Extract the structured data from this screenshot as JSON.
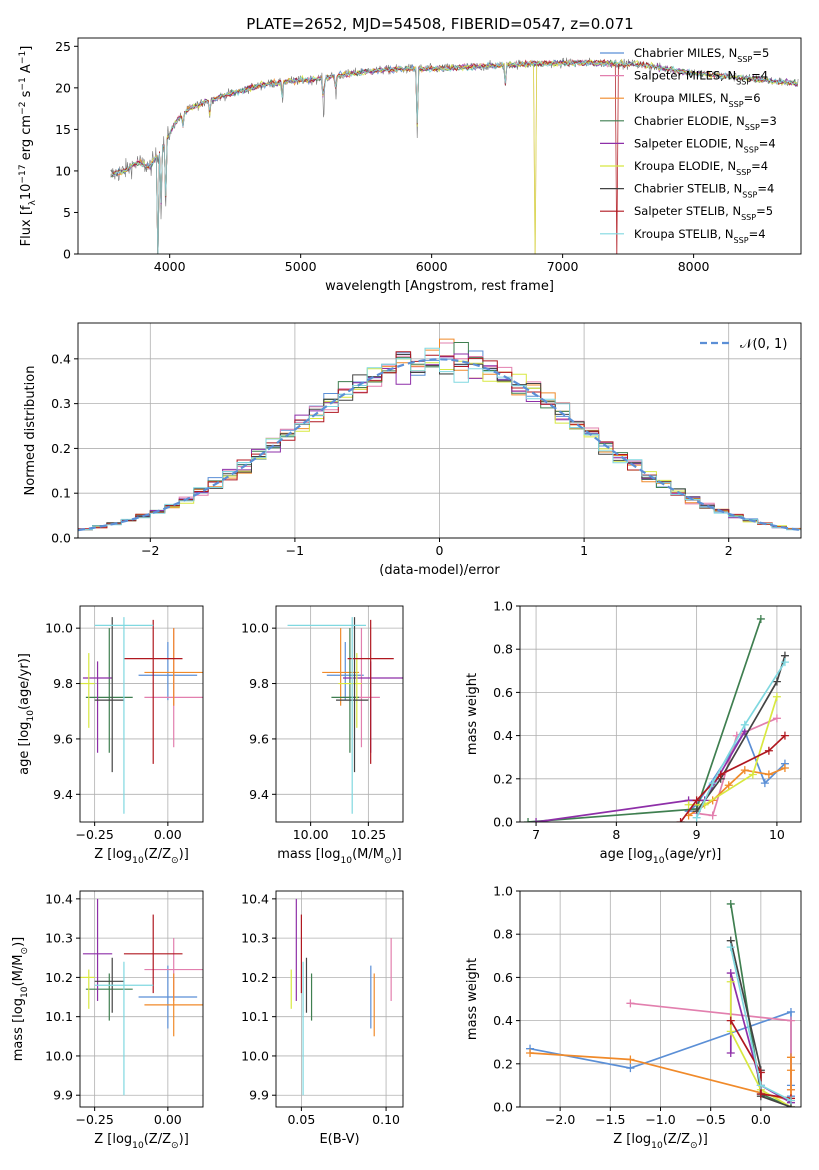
{
  "figure": {
    "title": "PLATE=2652, MJD=54508, FIBERID=0547, z=0.071"
  },
  "colors": {
    "chabrier_miles": "#5b8fd6",
    "salpeter_miles": "#e27fae",
    "kroupa_miles": "#f08a2a",
    "chabrier_elodie": "#3f7f50",
    "salpeter_elodie": "#8e2fa8",
    "kroupa_elodie": "#d8e840",
    "chabrier_stelib": "#444444",
    "salpeter_stelib": "#b01820",
    "kroupa_stelib": "#80d8e0",
    "normal_curve": "#5b8fd6",
    "grid": "#b0b0b0"
  },
  "chart_data": [
    {
      "id": "spectrum",
      "type": "line",
      "xlabel": "wavelength [Angstrom, rest frame]",
      "ylabel": "Flux [f_λ10^-17 erg cm^-2 s^-1 A^-1]",
      "xlim": [
        3300,
        8820
      ],
      "ylim": [
        0,
        26
      ],
      "xticks": [
        4000,
        5000,
        6000,
        7000,
        8000
      ],
      "yticks": [
        0,
        5,
        10,
        15,
        20,
        25
      ],
      "grid": false,
      "legend_position": "top-right",
      "legend": [
        {
          "label": "Chabrier MILES, N",
          "sub": "SSP",
          "suffix": "=5",
          "color_key": "chabrier_miles"
        },
        {
          "label": "Salpeter MILES, N",
          "sub": "SSP",
          "suffix": "=4",
          "color_key": "salpeter_miles"
        },
        {
          "label": "Kroupa MILES, N",
          "sub": "SSP",
          "suffix": "=6",
          "color_key": "kroupa_miles"
        },
        {
          "label": "Chabrier ELODIE, N",
          "sub": "SSP",
          "suffix": "=3",
          "color_key": "chabrier_elodie"
        },
        {
          "label": "Salpeter ELODIE, N",
          "sub": "SSP",
          "suffix": "=4",
          "color_key": "salpeter_elodie"
        },
        {
          "label": "Kroupa ELODIE, N",
          "sub": "SSP",
          "suffix": "=4",
          "color_key": "kroupa_elodie"
        },
        {
          "label": "Chabrier STELIB, N",
          "sub": "SSP",
          "suffix": "=4",
          "color_key": "chabrier_stelib"
        },
        {
          "label": "Salpeter STELIB, N",
          "sub": "SSP",
          "suffix": "=5",
          "color_key": "salpeter_stelib"
        },
        {
          "label": "Kroupa STELIB, N",
          "sub": "SSP",
          "suffix": "=4",
          "color_key": "kroupa_stelib"
        }
      ],
      "continuum": [
        [
          3550,
          9.5
        ],
        [
          3650,
          10
        ],
        [
          3750,
          11
        ],
        [
          3850,
          10.5
        ],
        [
          3950,
          13
        ],
        [
          4050,
          16
        ],
        [
          4150,
          17.5
        ],
        [
          4300,
          18.5
        ],
        [
          4500,
          19.5
        ],
        [
          4700,
          20.3
        ],
        [
          4900,
          20.8
        ],
        [
          5100,
          21
        ],
        [
          5300,
          21.5
        ],
        [
          5500,
          22
        ],
        [
          5800,
          22.3
        ],
        [
          6000,
          22.3
        ],
        [
          6300,
          22.5
        ],
        [
          6600,
          22.8
        ],
        [
          7000,
          23
        ],
        [
          7300,
          23
        ],
        [
          7600,
          22.8
        ],
        [
          7900,
          22
        ],
        [
          8200,
          21.5
        ],
        [
          8500,
          21
        ],
        [
          8800,
          20.5
        ]
      ],
      "absorption_lines": [
        [
          3934,
          4.5
        ],
        [
          3969,
          5
        ],
        [
          4101,
          15
        ],
        [
          4305,
          16.5
        ],
        [
          4861,
          18
        ],
        [
          5175,
          16
        ],
        [
          5270,
          19
        ],
        [
          5890,
          14
        ],
        [
          6563,
          20
        ]
      ],
      "model_gaps": [
        3910,
        6790,
        7410
      ]
    },
    {
      "id": "residuals",
      "type": "histogram",
      "xlabel": "(data-model)/error",
      "ylabel": "Normed distribution",
      "xlim": [
        -2.5,
        2.5
      ],
      "ylim": [
        0,
        0.48
      ],
      "xticks": [
        -2,
        -1,
        0,
        1,
        2
      ],
      "yticks": [
        0.0,
        0.1,
        0.2,
        0.3,
        0.4
      ],
      "grid": true,
      "legend_position": "top-right",
      "legend_label": "𝒩(0, 1)",
      "bin_width": 0.1
    },
    {
      "id": "age_vs_Z",
      "type": "errorbar",
      "xlabel": "Z [log10(Z/Z⊙)]",
      "ylabel": "age [log10(age/yr)]",
      "xlim": [
        -0.3,
        0.12
      ],
      "ylim": [
        9.3,
        10.08
      ],
      "xticks": [
        -0.25,
        0.0
      ],
      "yticks": [
        9.4,
        9.6,
        9.8,
        10.0
      ],
      "grid": true,
      "points": [
        {
          "c": "chabrier_miles",
          "x": 0.0,
          "xe": [
            0.1,
            0.1
          ],
          "y": 9.83,
          "ye": [
            0.09,
            0.12
          ]
        },
        {
          "c": "salpeter_miles",
          "x": 0.02,
          "xe": [
            0.1,
            0.1
          ],
          "y": 9.75,
          "ye": [
            0.18,
            0.25
          ]
        },
        {
          "c": "kroupa_miles",
          "x": 0.02,
          "xe": [
            0.1,
            0.1
          ],
          "y": 9.84,
          "ye": [
            0.12,
            0.16
          ]
        },
        {
          "c": "chabrier_elodie",
          "x": -0.2,
          "xe": [
            0.08,
            0.08
          ],
          "y": 9.75,
          "ye": [
            0.2,
            0.25
          ]
        },
        {
          "c": "salpeter_elodie",
          "x": -0.24,
          "xe": [
            0.05,
            0.05
          ],
          "y": 9.82,
          "ye": [
            0.27,
            0.06
          ]
        },
        {
          "c": "kroupa_elodie",
          "x": -0.27,
          "xe": [
            0.03,
            0.02
          ],
          "y": 9.8,
          "ye": [
            0.16,
            0.11
          ]
        },
        {
          "c": "chabrier_stelib",
          "x": -0.19,
          "xe": [
            0.06,
            0.04
          ],
          "y": 9.74,
          "ye": [
            0.26,
            0.3
          ]
        },
        {
          "c": "salpeter_stelib",
          "x": -0.05,
          "xe": [
            0.1,
            0.1
          ],
          "y": 9.89,
          "ye": [
            0.38,
            0.14
          ]
        },
        {
          "c": "kroupa_stelib",
          "x": -0.15,
          "xe": [
            0.1,
            0.1
          ],
          "y": 10.01,
          "ye": [
            0.68,
            0.03
          ]
        }
      ]
    },
    {
      "id": "age_vs_mass",
      "type": "errorbar",
      "xlabel": "mass [log10(M/M⊙)]",
      "ylabel": "",
      "xlim": [
        9.85,
        10.4
      ],
      "ylim": [
        9.3,
        10.08
      ],
      "xticks": [
        10.0,
        10.25
      ],
      "yticks": [
        9.4,
        9.6,
        9.8,
        10.0
      ],
      "grid": true,
      "points": [
        {
          "c": "chabrier_miles",
          "x": 10.15,
          "xe": [
            0.08,
            0.08
          ],
          "y": 9.83,
          "ye": [
            0.09,
            0.12
          ]
        },
        {
          "c": "salpeter_miles",
          "x": 10.22,
          "xe": [
            0.08,
            0.08
          ],
          "y": 9.75,
          "ye": [
            0.18,
            0.25
          ]
        },
        {
          "c": "kroupa_miles",
          "x": 10.13,
          "xe": [
            0.08,
            0.08
          ],
          "y": 9.84,
          "ye": [
            0.12,
            0.16
          ]
        },
        {
          "c": "chabrier_elodie",
          "x": 10.17,
          "xe": [
            0.08,
            0.04
          ],
          "y": 9.75,
          "ye": [
            0.2,
            0.25
          ]
        },
        {
          "c": "salpeter_elodie",
          "x": 10.26,
          "xe": [
            0.12,
            0.14
          ],
          "y": 9.82,
          "ye": [
            0.27,
            0.06
          ]
        },
        {
          "c": "kroupa_elodie",
          "x": 10.2,
          "xe": [
            0.08,
            0.02
          ],
          "y": 9.8,
          "ye": [
            0.16,
            0.11
          ]
        },
        {
          "c": "chabrier_stelib",
          "x": 10.19,
          "xe": [
            0.08,
            0.06
          ],
          "y": 9.74,
          "ye": [
            0.26,
            0.3
          ]
        },
        {
          "c": "salpeter_stelib",
          "x": 10.26,
          "xe": [
            0.1,
            0.1
          ],
          "y": 9.89,
          "ye": [
            0.38,
            0.14
          ]
        },
        {
          "c": "kroupa_stelib",
          "x": 10.18,
          "xe": [
            0.28,
            0.06
          ],
          "y": 10.01,
          "ye": [
            0.68,
            0.03
          ]
        }
      ]
    },
    {
      "id": "weight_vs_age",
      "type": "line",
      "xlabel": "age [log10(age/yr)]",
      "ylabel": "mass weight",
      "xlim": [
        6.8,
        10.3
      ],
      "ylim": [
        0,
        1.0
      ],
      "xticks": [
        7,
        8,
        9,
        10
      ],
      "yticks": [
        0.0,
        0.2,
        0.4,
        0.6,
        0.8,
        1.0
      ],
      "grid": true,
      "series": [
        {
          "c": "chabrier_miles",
          "x": [
            8.9,
            9.0,
            9.6,
            9.85,
            10.1
          ],
          "y": [
            0.05,
            0.08,
            0.42,
            0.18,
            0.27
          ]
        },
        {
          "c": "salpeter_miles",
          "x": [
            9.0,
            9.2,
            9.5,
            10.0
          ],
          "y": [
            0.04,
            0.03,
            0.4,
            0.48
          ]
        },
        {
          "c": "kroupa_miles",
          "x": [
            8.9,
            9.2,
            9.4,
            9.6,
            9.9,
            10.1
          ],
          "y": [
            0.03,
            0.1,
            0.17,
            0.24,
            0.22,
            0.25
          ]
        },
        {
          "c": "chabrier_elodie",
          "x": [
            6.9,
            9.0,
            9.8
          ],
          "y": [
            0.0,
            0.06,
            0.94
          ]
        },
        {
          "c": "salpeter_elodie",
          "x": [
            7.0,
            8.9,
            9.1,
            9.6
          ],
          "y": [
            0.0,
            0.1,
            0.1,
            0.42
          ]
        },
        {
          "c": "kroupa_elodie",
          "x": [
            8.9,
            9.1,
            9.7,
            10.0
          ],
          "y": [
            0.08,
            0.08,
            0.22,
            0.58
          ]
        },
        {
          "c": "chabrier_stelib",
          "x": [
            9.0,
            9.3,
            10.0,
            10.1
          ],
          "y": [
            0.05,
            0.2,
            0.65,
            0.77
          ]
        },
        {
          "c": "salpeter_stelib",
          "x": [
            8.8,
            9.0,
            9.3,
            9.9,
            10.1
          ],
          "y": [
            0.0,
            0.1,
            0.22,
            0.33,
            0.4
          ]
        },
        {
          "c": "kroupa_stelib",
          "x": [
            9.0,
            9.2,
            9.6,
            10.1
          ],
          "y": [
            0.02,
            0.18,
            0.45,
            0.74
          ]
        }
      ]
    },
    {
      "id": "mass_vs_Z",
      "type": "errorbar",
      "xlabel": "Z [log10(Z/Z⊙)]",
      "ylabel": "mass [log10(M/M⊙)]",
      "xlim": [
        -0.3,
        0.12
      ],
      "ylim": [
        9.87,
        10.42
      ],
      "xticks": [
        -0.25,
        0.0
      ],
      "yticks": [
        9.9,
        10.0,
        10.1,
        10.2,
        10.3,
        10.4
      ],
      "grid": true,
      "points": [
        {
          "c": "chabrier_miles",
          "x": 0.0,
          "xe": [
            0.1,
            0.1
          ],
          "y": 10.15,
          "ye": [
            0.08,
            0.08
          ]
        },
        {
          "c": "salpeter_miles",
          "x": 0.02,
          "xe": [
            0.1,
            0.1
          ],
          "y": 10.22,
          "ye": [
            0.08,
            0.08
          ]
        },
        {
          "c": "kroupa_miles",
          "x": 0.02,
          "xe": [
            0.1,
            0.1
          ],
          "y": 10.13,
          "ye": [
            0.08,
            0.08
          ]
        },
        {
          "c": "chabrier_elodie",
          "x": -0.2,
          "xe": [
            0.08,
            0.08
          ],
          "y": 10.17,
          "ye": [
            0.08,
            0.04
          ]
        },
        {
          "c": "salpeter_elodie",
          "x": -0.24,
          "xe": [
            0.05,
            0.05
          ],
          "y": 10.26,
          "ye": [
            0.12,
            0.14
          ]
        },
        {
          "c": "kroupa_elodie",
          "x": -0.27,
          "xe": [
            0.03,
            0.02
          ],
          "y": 10.2,
          "ye": [
            0.08,
            0.02
          ]
        },
        {
          "c": "chabrier_stelib",
          "x": -0.19,
          "xe": [
            0.06,
            0.04
          ],
          "y": 10.19,
          "ye": [
            0.08,
            0.06
          ]
        },
        {
          "c": "salpeter_stelib",
          "x": -0.05,
          "xe": [
            0.1,
            0.1
          ],
          "y": 10.26,
          "ye": [
            0.1,
            0.1
          ]
        },
        {
          "c": "kroupa_stelib",
          "x": -0.15,
          "xe": [
            0.1,
            0.1
          ],
          "y": 10.18,
          "ye": [
            0.28,
            0.06
          ]
        }
      ]
    },
    {
      "id": "mass_vs_ebv",
      "type": "errorbar",
      "xlabel": "E(B-V)",
      "ylabel": "",
      "xlim": [
        0.035,
        0.11
      ],
      "ylim": [
        9.87,
        10.42
      ],
      "xticks": [
        0.05,
        0.1
      ],
      "yticks": [
        9.9,
        10.0,
        10.1,
        10.2,
        10.3,
        10.4
      ],
      "grid": true,
      "points": [
        {
          "c": "chabrier_miles",
          "x": 0.091,
          "y": 10.15,
          "ye": [
            0.08,
            0.08
          ]
        },
        {
          "c": "salpeter_miles",
          "x": 0.103,
          "y": 10.22,
          "ye": [
            0.08,
            0.08
          ]
        },
        {
          "c": "kroupa_miles",
          "x": 0.093,
          "y": 10.13,
          "ye": [
            0.08,
            0.08
          ]
        },
        {
          "c": "chabrier_elodie",
          "x": 0.056,
          "y": 10.17,
          "ye": [
            0.08,
            0.04
          ]
        },
        {
          "c": "salpeter_elodie",
          "x": 0.047,
          "y": 10.26,
          "ye": [
            0.12,
            0.14
          ]
        },
        {
          "c": "kroupa_elodie",
          "x": 0.044,
          "y": 10.2,
          "ye": [
            0.08,
            0.02
          ]
        },
        {
          "c": "chabrier_stelib",
          "x": 0.053,
          "y": 10.19,
          "ye": [
            0.08,
            0.06
          ]
        },
        {
          "c": "salpeter_stelib",
          "x": 0.05,
          "y": 10.26,
          "ye": [
            0.1,
            0.1
          ]
        },
        {
          "c": "kroupa_stelib",
          "x": 0.051,
          "y": 10.18,
          "ye": [
            0.28,
            0.06
          ]
        }
      ]
    },
    {
      "id": "weight_vs_Z",
      "type": "line",
      "xlabel": "Z [log10(Z/Z⊙)]",
      "ylabel": "mass weight",
      "xlim": [
        -2.4,
        0.4
      ],
      "ylim": [
        0,
        1.0
      ],
      "xticks": [
        -2.0,
        -1.5,
        -1.0,
        -0.5,
        0.0
      ],
      "yticks": [
        0.0,
        0.2,
        0.4,
        0.6,
        0.8,
        1.0
      ],
      "grid": true,
      "series": [
        {
          "c": "chabrier_miles",
          "x": [
            -2.3,
            -1.3,
            0.3,
            0.3,
            0.3
          ],
          "y": [
            0.27,
            0.18,
            0.44,
            0.1,
            0.05
          ]
        },
        {
          "c": "salpeter_miles",
          "x": [
            -1.3,
            0.3,
            0.3,
            0.3
          ],
          "y": [
            0.48,
            0.4,
            0.08,
            0.04
          ]
        },
        {
          "c": "kroupa_miles",
          "x": [
            -2.3,
            -1.3,
            0.3,
            0.3,
            0.3,
            0.3
          ],
          "y": [
            0.25,
            0.22,
            0.03,
            0.08,
            0.17,
            0.23
          ]
        },
        {
          "c": "chabrier_elodie",
          "x": [
            -0.3,
            0.0,
            0.3
          ],
          "y": [
            0.94,
            0.06,
            0.0
          ]
        },
        {
          "c": "salpeter_elodie",
          "x": [
            -0.3,
            -0.3,
            0.0,
            0.3
          ],
          "y": [
            0.25,
            0.62,
            0.1,
            0.02
          ]
        },
        {
          "c": "kroupa_elodie",
          "x": [
            -0.3,
            -0.3,
            0.0,
            0.3
          ],
          "y": [
            0.58,
            0.35,
            0.08,
            0.0
          ]
        },
        {
          "c": "chabrier_stelib",
          "x": [
            -0.3,
            0.0,
            0.0,
            0.3
          ],
          "y": [
            0.77,
            0.17,
            0.05,
            0.0
          ]
        },
        {
          "c": "salpeter_stelib",
          "x": [
            -0.3,
            0.0,
            0.0,
            0.3
          ],
          "y": [
            0.4,
            0.16,
            0.06,
            0.04
          ]
        },
        {
          "c": "kroupa_stelib",
          "x": [
            -0.3,
            0.0,
            0.3
          ],
          "y": [
            0.74,
            0.1,
            0.03
          ]
        }
      ]
    }
  ]
}
